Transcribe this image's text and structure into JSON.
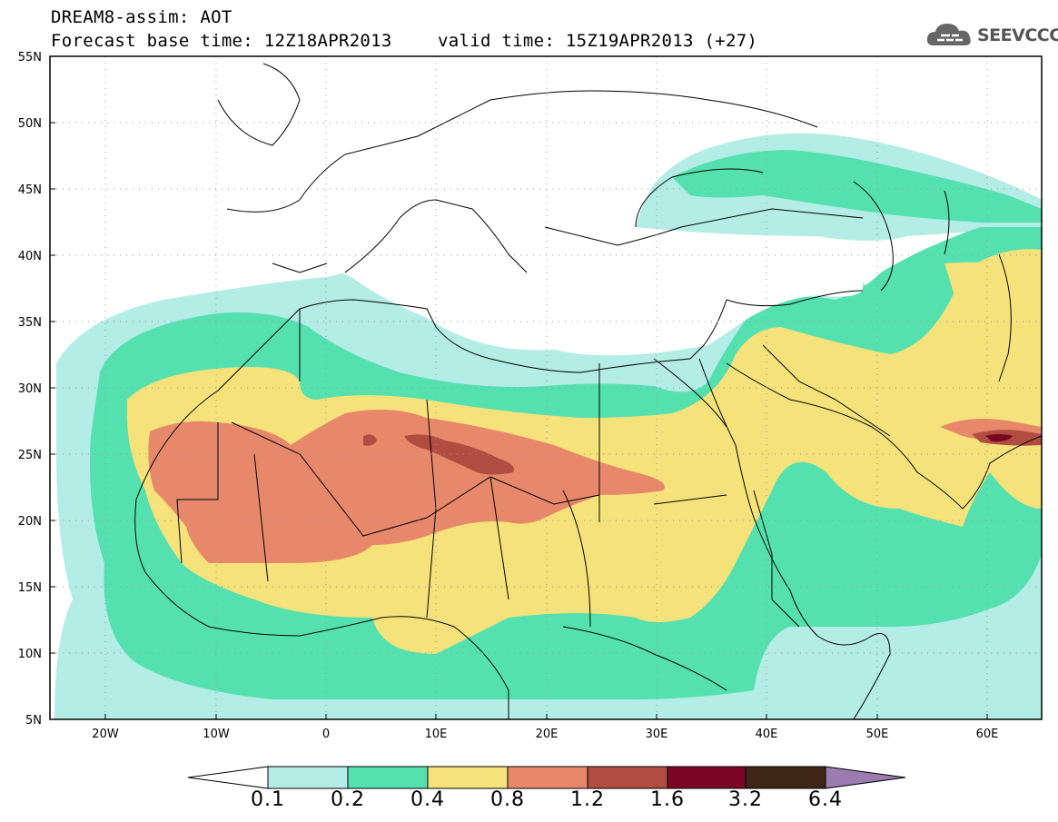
{
  "header": {
    "title_line1": "DREAM8-assim: AOT",
    "title_line2": "Forecast base time: 12Z18APR2013",
    "valid_time": "valid time: 15Z19APR2013 (+27)"
  },
  "logo": {
    "text": "SEEVCCC",
    "icon": "cloud-logo-icon"
  },
  "map": {
    "region": "North Africa / Middle East / Europe",
    "lon_range": [
      -25,
      65
    ],
    "lat_range": [
      5,
      55
    ],
    "lat_labels": [
      "55N",
      "50N",
      "45N",
      "40N",
      "35N",
      "30N",
      "25N",
      "20N",
      "15N",
      "10N",
      "5N"
    ],
    "lon_labels": [
      "20W",
      "10W",
      "0",
      "10E",
      "20E",
      "30E",
      "40E",
      "50E",
      "60E"
    ],
    "peak_region": "25N 10-15E",
    "colors": {
      "ocean": "#ffffff",
      "border": "#000000"
    }
  },
  "colorbar": {
    "labels": [
      "0.1",
      "0.2",
      "0.4",
      "0.8",
      "1.2",
      "1.6",
      "3.2",
      "6.4"
    ],
    "colors": [
      "#ffffff",
      "#b3ede6",
      "#55e0b0",
      "#f5e27a",
      "#e8886b",
      "#b04c40",
      "#7a0624",
      "#3d2616",
      "#9b7bb0"
    ]
  }
}
